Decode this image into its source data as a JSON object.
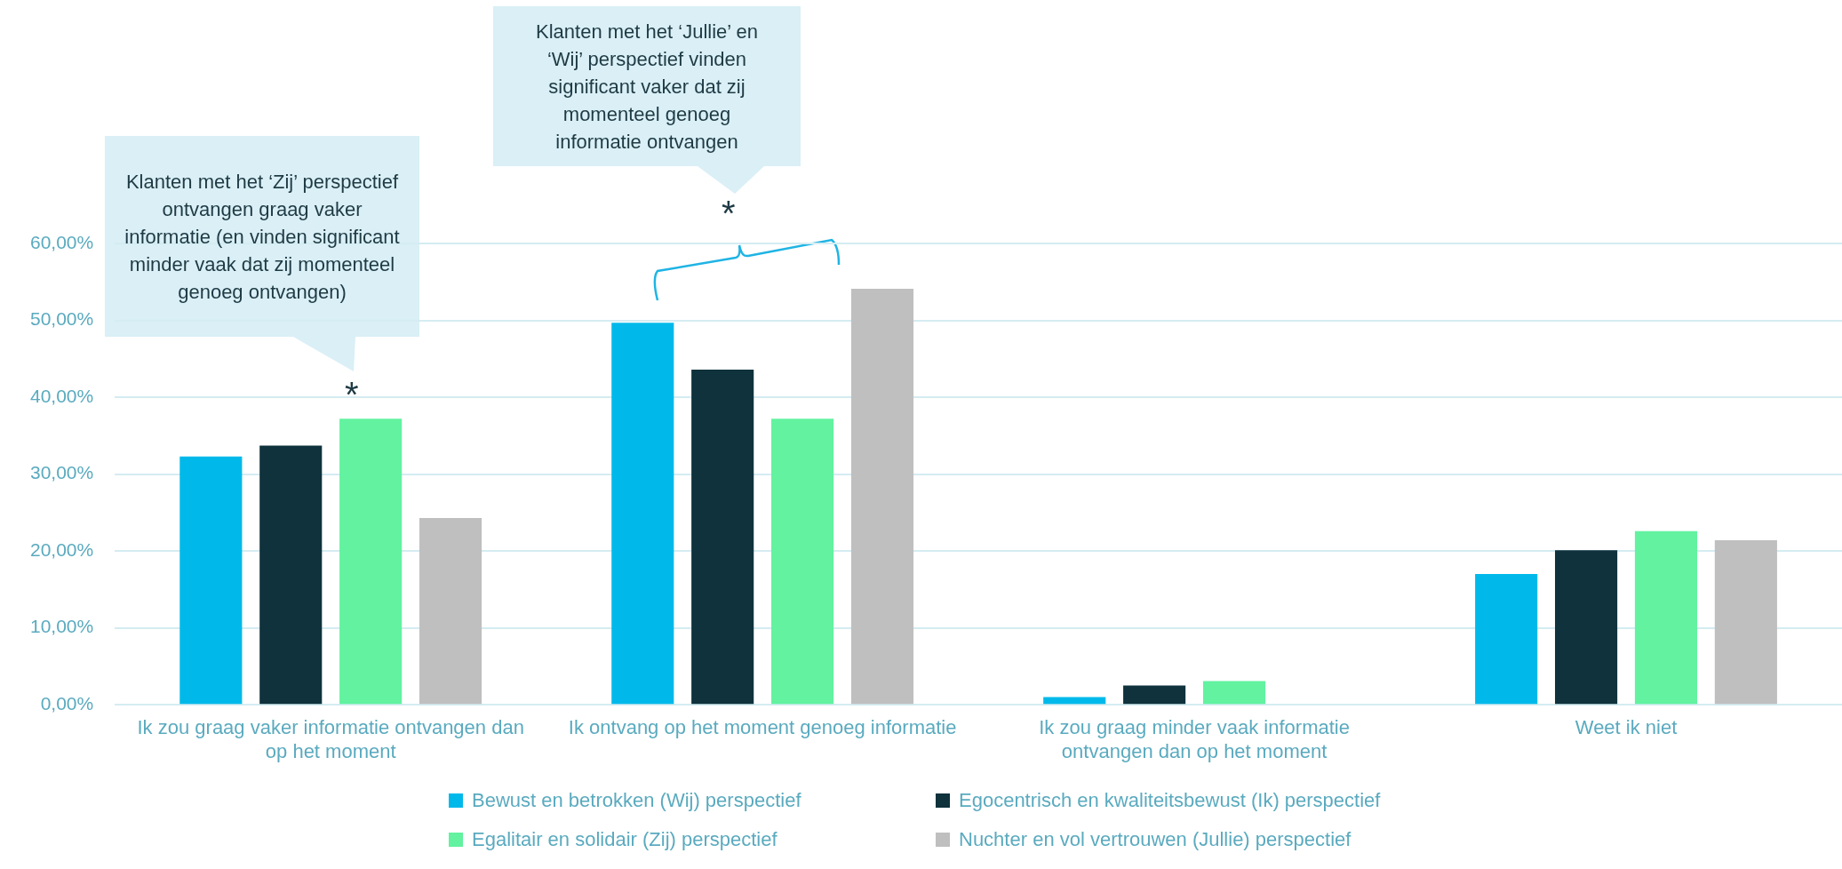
{
  "chart_data": {
    "type": "bar",
    "categories": [
      "Ik zou graag vaker informatie ontvangen dan op het moment",
      "Ik ontvang op het moment genoeg informatie",
      "Ik zou graag minder vaak informatie ontvangen dan op het moment",
      "Weet ik niet"
    ],
    "series": [
      {
        "name": "Bewust en betrokken (Wij) perspectief",
        "color": "#00b9ea",
        "values": [
          32.3,
          49.7,
          1.0,
          17.0
        ]
      },
      {
        "name": "Egocentrisch en kwaliteitsbewust (Ik) perspectief",
        "color": "#0f323c",
        "values": [
          33.7,
          43.6,
          2.5,
          20.1
        ]
      },
      {
        "name": "Egalitair en solidair (Zij) perspectief",
        "color": "#62f2a0",
        "values": [
          37.2,
          37.2,
          3.1,
          22.6
        ]
      },
      {
        "name": "Nuchter en vol vertrouwen (Jullie) perspectief",
        "color": "#bfbfbf",
        "values": [
          24.3,
          54.1,
          null,
          21.4
        ]
      }
    ],
    "ylim": [
      0,
      60
    ],
    "yticks": [
      {
        "value": 0,
        "label": "0,00%"
      },
      {
        "value": 10,
        "label": "10,00%"
      },
      {
        "value": 20,
        "label": "20,00%"
      },
      {
        "value": 30,
        "label": "30,00%"
      },
      {
        "value": 40,
        "label": "40,00%"
      },
      {
        "value": 50,
        "label": "50,00%"
      },
      {
        "value": 60,
        "label": "60,00%"
      }
    ],
    "grid": "y",
    "legend": "bottom",
    "annotations": [
      "Klanten met het ‘Zij’ perspectief ontvangen graag vaker informatie (en vinden significant minder vaak dat zij momenteel genoeg ontvangen)",
      "*",
      "Klanten met het ‘Jullie’ en ‘Wij’ perspectief vinden significant vaker dat zij momenteel genoeg informatie ontvangen",
      "*"
    ]
  }
}
